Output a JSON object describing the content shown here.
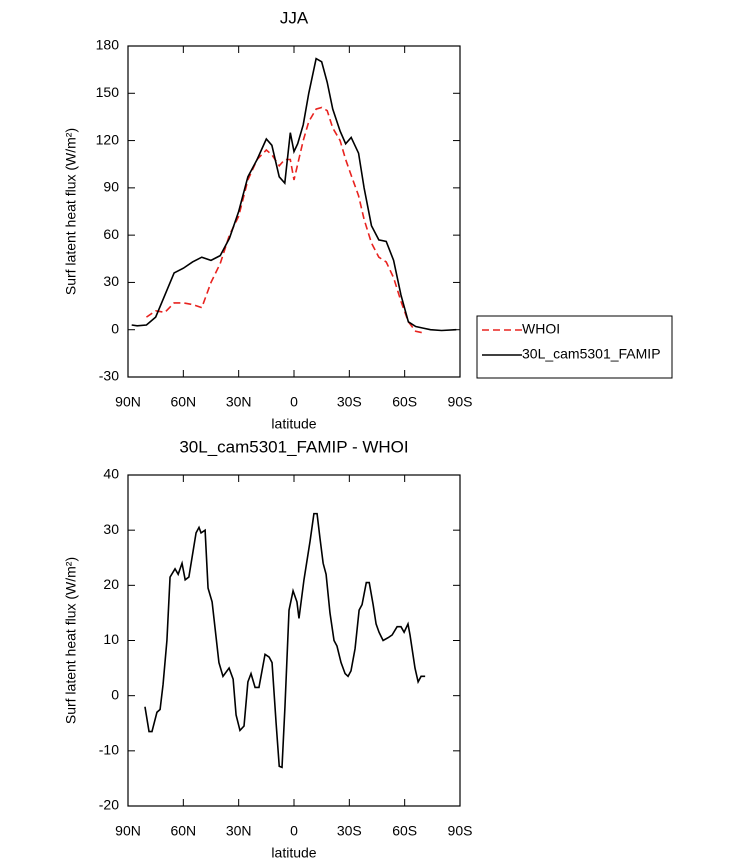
{
  "chart_data": [
    {
      "type": "line",
      "title": "JJA",
      "xlabel": "latitude",
      "ylabel": "Surf latent heat flux (W/m²)",
      "x": [
        88,
        85,
        80,
        75,
        70,
        65,
        60,
        55,
        50,
        45,
        40,
        35,
        30,
        25,
        20,
        15,
        12,
        8,
        5,
        2,
        0,
        -2,
        -5,
        -8,
        -12,
        -15,
        -18,
        -21,
        -25,
        -28,
        -31,
        -35,
        -38,
        -42,
        -46,
        -50,
        -54,
        -58,
        -62,
        -66,
        -70,
        -74,
        -80,
        -88
      ],
      "series": [
        {
          "name": "WHOI",
          "color": "#e8231f",
          "linestyle": "dashed",
          "values": [
            null,
            null,
            8,
            12,
            11,
            17,
            17,
            16,
            14,
            30,
            42,
            60,
            72,
            95,
            108,
            114,
            111,
            104,
            108,
            108,
            95,
            105,
            120,
            132,
            140,
            141,
            139,
            128,
            120,
            108,
            98,
            85,
            70,
            55,
            46,
            43,
            33,
            18,
            5,
            -1,
            -2,
            null,
            null,
            null
          ]
        },
        {
          "name": "30L_cam5301_FAMIP",
          "color": "#000000",
          "linestyle": "solid",
          "values": [
            3,
            2.5,
            3,
            8,
            22,
            36,
            39,
            43,
            46,
            44,
            47,
            58,
            75,
            97,
            108,
            121,
            117,
            97,
            93,
            125,
            113,
            118,
            130,
            150,
            172,
            170,
            157,
            140,
            126,
            118,
            122,
            112,
            90,
            66,
            57,
            56,
            44,
            22,
            5,
            2,
            1,
            0,
            -0.5,
            0
          ]
        }
      ],
      "xlim": [
        90,
        -90
      ],
      "xticks": [
        {
          "value": 90,
          "label": "90N"
        },
        {
          "value": 60,
          "label": "60N"
        },
        {
          "value": 30,
          "label": "30N"
        },
        0,
        {
          "value": -30,
          "label": "30S"
        },
        {
          "value": -60,
          "label": "60S"
        },
        {
          "value": -90,
          "label": "90S"
        }
      ],
      "ylim": [
        -30,
        180
      ],
      "yticks": [
        -30,
        0,
        30,
        60,
        90,
        120,
        150,
        180
      ],
      "grid": false,
      "legend": "right"
    },
    {
      "type": "line",
      "title": "30L_cam5301_FAMIP - WHOI",
      "xlabel": "latitude",
      "ylabel": "Surf latent heat flux (W/m²)",
      "color": "#000000",
      "x": [
        80.8,
        78.6,
        77,
        74.3,
        72.6,
        71,
        68.9,
        67.2,
        64.5,
        62.8,
        60.7,
        59,
        57,
        53.1,
        51.5,
        50.4,
        48.2,
        46.6,
        44.4,
        40.7,
        38.5,
        35.2,
        33,
        31.4,
        29.3,
        27.1,
        25,
        23.3,
        21.1,
        19,
        15.7,
        13.5,
        11.9,
        9.7,
        8,
        6.5,
        4.9,
        2.7,
        0.5,
        -1.6,
        -2.7,
        -5.4,
        -8.7,
        -10.8,
        -12.5,
        -14.1,
        -15.8,
        -17.4,
        -19.5,
        -21.7,
        -23.3,
        -25.5,
        -27.7,
        -29.3,
        -30.9,
        -33.1,
        -35.3,
        -36.9,
        -39.2,
        -40.8,
        -42.9,
        -44.5,
        -46.1,
        -48.3,
        -51,
        -53.2,
        -55.9,
        -58,
        -59.7,
        -61.8,
        -62.9,
        -65.6,
        -67.3,
        -68.9,
        -71.1
      ],
      "values": [
        -2,
        -6.5,
        -6.5,
        -3,
        -2.5,
        2,
        10,
        21.5,
        23,
        22,
        24,
        21,
        21.5,
        29.5,
        30.5,
        29.5,
        30,
        19.5,
        17,
        6,
        3.5,
        5,
        3,
        -3.5,
        -6.3,
        -5.5,
        2.5,
        4,
        1.5,
        1.5,
        7.5,
        7,
        6,
        -5,
        -12.8,
        -13,
        -2,
        15.5,
        19,
        17,
        14,
        21,
        28,
        33,
        33,
        28.5,
        24,
        22,
        15,
        10,
        9,
        6,
        4,
        3.5,
        4.5,
        8.5,
        15.5,
        16.5,
        20.5,
        20.5,
        16.5,
        13,
        11.5,
        10,
        10.5,
        11,
        12.5,
        12.5,
        11.5,
        13,
        11,
        5,
        2.5,
        3.5,
        3.5
      ],
      "xlim": [
        90,
        -90
      ],
      "xticks": [
        {
          "value": 90,
          "label": "90N"
        },
        {
          "value": 60,
          "label": "60N"
        },
        {
          "value": 30,
          "label": "30N"
        },
        0,
        {
          "value": -30,
          "label": "30S"
        },
        {
          "value": -60,
          "label": "60S"
        },
        {
          "value": -90,
          "label": "90S"
        }
      ],
      "ylim": [
        -20,
        40
      ],
      "yticks": [
        -20,
        -10,
        0,
        10,
        20,
        30,
        40
      ],
      "grid": false
    }
  ]
}
